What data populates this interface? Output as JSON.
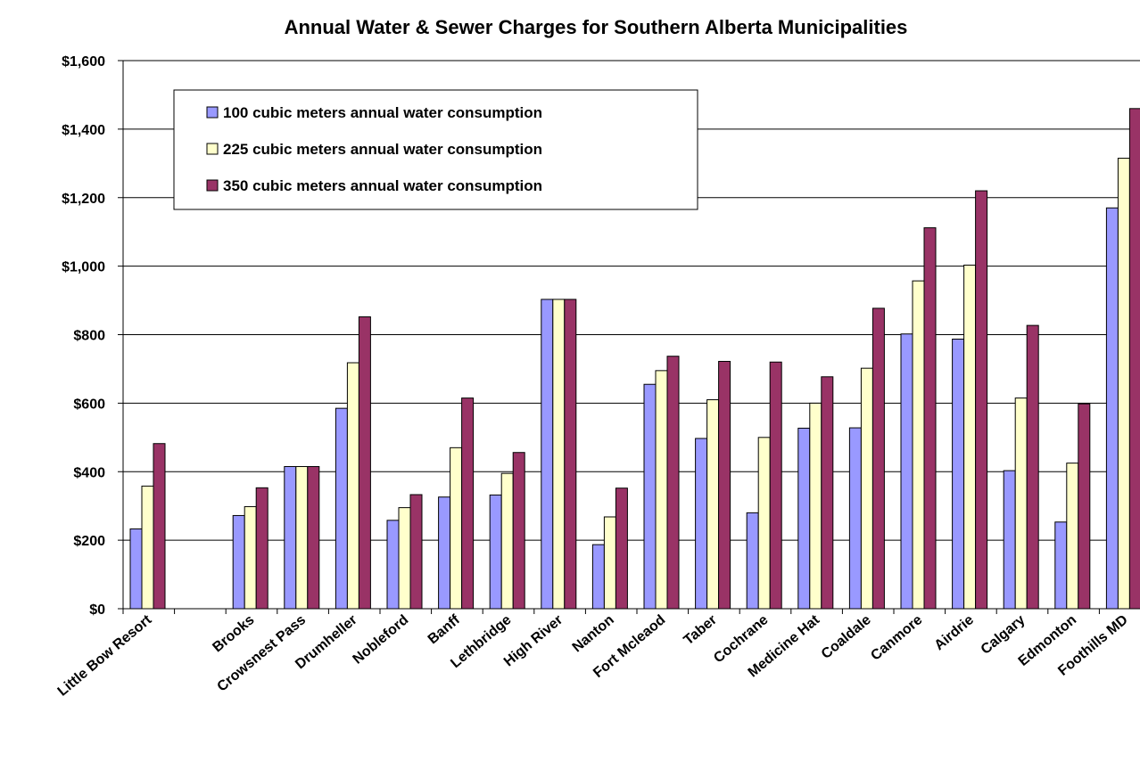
{
  "chart_data": {
    "type": "bar",
    "title": "Annual Water & Sewer Charges for Southern Alberta Municipalities",
    "categories": [
      "Little Bow Resort",
      null,
      "Brooks",
      "Crowsnest Pass",
      "Drumheller",
      "Nobleford",
      "Banff",
      "Lethbridge",
      "High River",
      "Nanton",
      "Fort Mcleaod",
      "Taber",
      "Cochrane",
      "Medicine Hat",
      "Coaldale",
      "Canmore",
      "Airdrie",
      "Calgary",
      "Edmonton",
      "Foothills MD"
    ],
    "series": [
      {
        "name": "100 cubic meters annual water consumption",
        "color": "#9999ff",
        "values": [
          233,
          null,
          272,
          415,
          585,
          258,
          326,
          332,
          903,
          187,
          655,
          497,
          280,
          527,
          528,
          802,
          787,
          403,
          253,
          1170
        ]
      },
      {
        "name": "225 cubic meters annual water consumption",
        "color": "#ffffcc",
        "values": [
          358,
          null,
          298,
          415,
          718,
          295,
          470,
          395,
          903,
          268,
          695,
          610,
          500,
          600,
          702,
          957,
          1003,
          615,
          425,
          1315
        ]
      },
      {
        "name": "350 cubic meters annual water consumption",
        "color": "#993366",
        "values": [
          482,
          null,
          353,
          415,
          852,
          333,
          615,
          456,
          903,
          352,
          737,
          722,
          720,
          677,
          877,
          1112,
          1220,
          827,
          598,
          1460
        ]
      }
    ],
    "ylim": [
      0,
      1600
    ],
    "yticks": [
      {
        "value": 0,
        "label": "$0"
      },
      {
        "value": 200,
        "label": "$200"
      },
      {
        "value": 400,
        "label": "$400"
      },
      {
        "value": 600,
        "label": "$600"
      },
      {
        "value": 800,
        "label": "$800"
      },
      {
        "value": 1000,
        "label": "$1,000"
      },
      {
        "value": 1200,
        "label": "$1,200"
      },
      {
        "value": 1400,
        "label": "$1,400"
      },
      {
        "value": 1600,
        "label": "$1,600"
      }
    ],
    "grid": true,
    "legend": "top-left"
  }
}
